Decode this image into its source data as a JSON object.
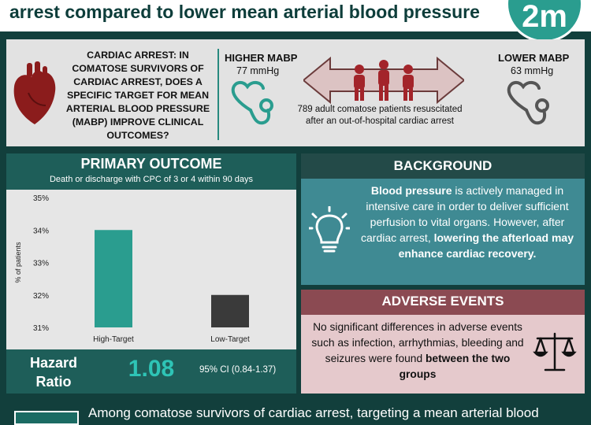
{
  "title": "arrest compared to lower mean arterial blood pressure",
  "logo_text": "2m",
  "question": "CARDIAC ARREST: IN COMATOSE SURVIVORS OF CARDIAC ARREST, DOES A SPECIFIC TARGET FOR MEAN ARTERIAL BLOOD PRESSURE (MABP) IMPROVE CLINICAL OUTCOMES?",
  "higher": {
    "label": "HIGHER MABP",
    "value": "77 mmHg"
  },
  "lower": {
    "label": "LOWER MABP",
    "value": "63 mmHg"
  },
  "population": "789 adult comatose patients resuscitated after an out-of-hospital cardiac arrest",
  "primary": {
    "title": "PRIMARY OUTCOME",
    "subtitle": "Death or discharge with CPC of 3 or 4 within 90 days"
  },
  "chart_data": {
    "type": "bar",
    "categories": [
      "High-Target",
      "Low-Target"
    ],
    "values": [
      34,
      32
    ],
    "ylabel": "% of patients",
    "ylim": [
      31,
      35
    ],
    "yticks": [
      "31%",
      "32%",
      "33%",
      "34%",
      "35%"
    ],
    "colors": [
      "#2a9d8f",
      "#3a3a3a"
    ],
    "grid": false
  },
  "hazard": {
    "label": "Hazard Ratio",
    "value": "1.08",
    "ci": "95% CI (0.84-1.37)"
  },
  "background": {
    "title": "BACKGROUND",
    "bold1": "Blood pressure",
    "text1": " is actively managed in intensive care in order to deliver sufficient perfusion to vital organs. However, after cardiac arrest, ",
    "bold2": "lowering the afterload may enhance cardiac recovery."
  },
  "adverse": {
    "title": "ADVERSE EVENTS",
    "text": "No significant differences in adverse events such as infection, arrhythmias, bleeding and seizures were found ",
    "bold": "between the two groups"
  },
  "conclusion": "Among comatose survivors of cardiac arrest, targeting a mean arterial blood",
  "icons": [
    "heart-icon",
    "stethoscope-icon",
    "double-arrow-icon",
    "people-icon",
    "lightbulb-icon",
    "scale-icon"
  ]
}
